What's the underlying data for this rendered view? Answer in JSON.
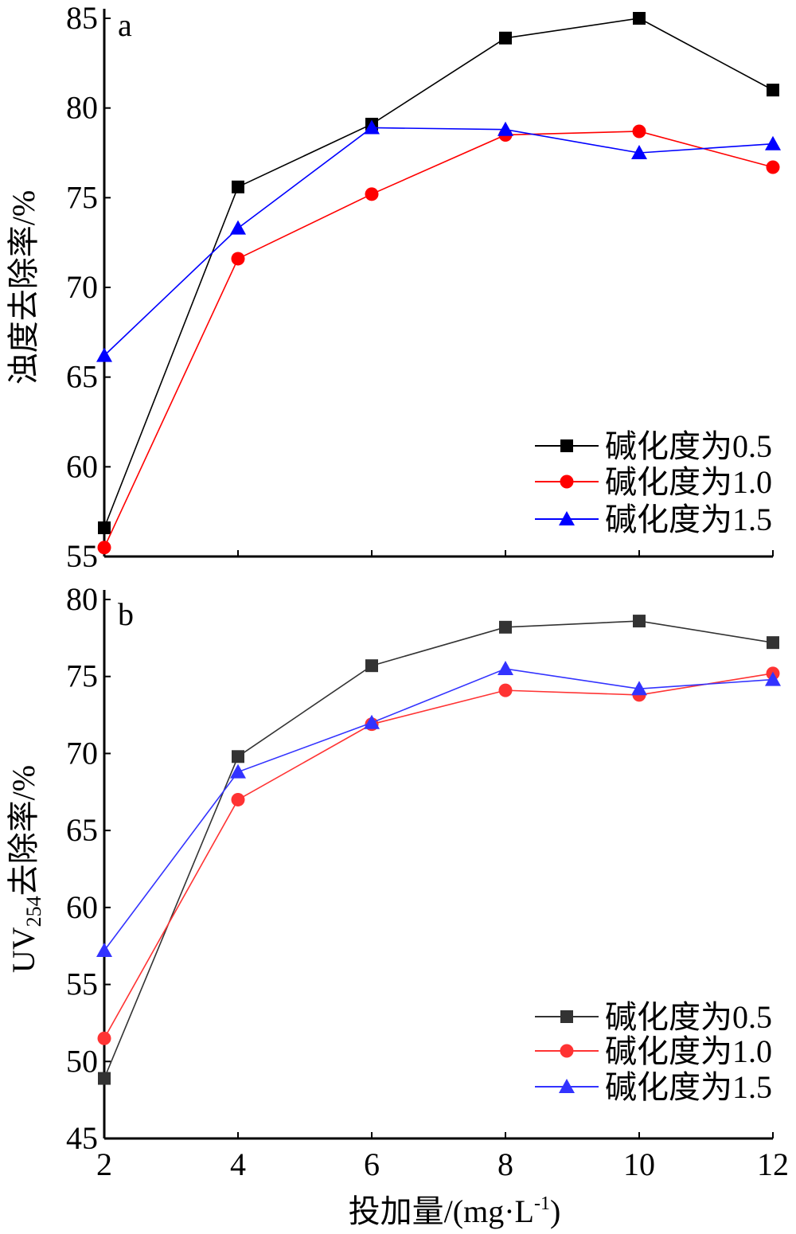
{
  "chart_data": [
    {
      "type": "line",
      "panel_label": "a",
      "ylabel": "浊度去除率/%",
      "ylim": [
        55,
        85
      ],
      "yticks": [
        55,
        60,
        65,
        70,
        75,
        80,
        85
      ],
      "x": [
        2,
        4,
        6,
        8,
        10,
        12
      ],
      "series": [
        {
          "name": "碱化度为0.5",
          "color": "#000000",
          "marker": "square",
          "values": [
            56.6,
            75.6,
            79.1,
            83.9,
            85.0,
            81.0
          ]
        },
        {
          "name": "碱化度为1.0",
          "color": "#ff0000",
          "marker": "circle",
          "values": [
            55.5,
            71.6,
            75.2,
            78.5,
            78.7,
            76.7
          ]
        },
        {
          "name": "碱化度为1.5",
          "color": "#0000ff",
          "marker": "triangle",
          "values": [
            66.2,
            73.3,
            78.9,
            78.8,
            77.5,
            78.0
          ]
        }
      ],
      "legend_position": "bottom-right",
      "grid": false
    },
    {
      "type": "line",
      "panel_label": "b",
      "ylabel_main": "UV",
      "ylabel_sub": "254",
      "ylabel_rest": "去除率/%",
      "ylim": [
        45,
        80
      ],
      "yticks": [
        45,
        50,
        55,
        60,
        65,
        70,
        75,
        80
      ],
      "x": [
        2,
        4,
        6,
        8,
        10,
        12
      ],
      "xticks": [
        "2",
        "4",
        "6",
        "8",
        "10",
        "12"
      ],
      "xlabel_main": "投加量/(mg·L",
      "xlabel_sup": "-1",
      "xlabel_end": ")",
      "series": [
        {
          "name": "碱化度为0.5",
          "color": "#333333",
          "marker": "square",
          "values": [
            48.9,
            69.8,
            75.7,
            78.2,
            78.6,
            77.2
          ]
        },
        {
          "name": "碱化度为1.0",
          "color": "#ff3333",
          "marker": "circle",
          "values": [
            51.5,
            67.0,
            71.9,
            74.1,
            73.8,
            75.2
          ]
        },
        {
          "name": "碱化度为1.5",
          "color": "#3333ff",
          "marker": "triangle",
          "values": [
            57.2,
            68.8,
            72.0,
            75.5,
            74.2,
            74.8
          ]
        }
      ],
      "legend_position": "bottom-right",
      "grid": false
    }
  ]
}
